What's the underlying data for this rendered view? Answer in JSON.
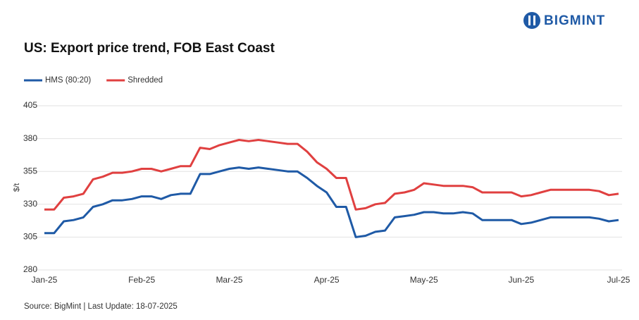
{
  "brand": "BIGMINT",
  "chart_data": {
    "type": "line",
    "title": "US: Export price trend, FOB East Coast",
    "y_label": "$/t",
    "source": "Source: BigMint | Last Update: 18-07-2025",
    "categories": [
      "Jan-25",
      null,
      null,
      null,
      null,
      null,
      null,
      null,
      null,
      null,
      "Feb-25",
      null,
      null,
      null,
      null,
      null,
      null,
      null,
      null,
      "Mar-25",
      null,
      null,
      null,
      null,
      null,
      null,
      null,
      null,
      null,
      "Apr-25",
      null,
      null,
      null,
      null,
      null,
      null,
      null,
      null,
      null,
      "May-25",
      null,
      null,
      null,
      null,
      null,
      null,
      null,
      null,
      null,
      "Jun-25",
      null,
      null,
      null,
      null,
      null,
      null,
      null,
      null,
      null,
      "Jul-25"
    ],
    "series": [
      {
        "name": "HMS (80:20)",
        "color": "#1f5aa6",
        "values": [
          308,
          308,
          317,
          318,
          320,
          328,
          330,
          333,
          333,
          334,
          336,
          336,
          334,
          337,
          338,
          338,
          353,
          353,
          355,
          357,
          358,
          357,
          358,
          357,
          356,
          355,
          355,
          350,
          344,
          339,
          328,
          328,
          305,
          306,
          309,
          310,
          320,
          321,
          322,
          324,
          324,
          323,
          323,
          324,
          323,
          318,
          318,
          318,
          318,
          315,
          316,
          318,
          320,
          320,
          320,
          320,
          320,
          319,
          317,
          318
        ]
      },
      {
        "name": "Shredded",
        "color": "#e04040",
        "values": [
          326,
          326,
          335,
          336,
          338,
          349,
          351,
          354,
          354,
          355,
          357,
          357,
          355,
          357,
          359,
          359,
          373,
          372,
          375,
          377,
          379,
          378,
          379,
          378,
          377,
          376,
          376,
          370,
          362,
          357,
          350,
          350,
          326,
          327,
          330,
          331,
          338,
          339,
          341,
          346,
          345,
          344,
          344,
          344,
          343,
          339,
          339,
          339,
          339,
          336,
          337,
          339,
          341,
          341,
          341,
          341,
          341,
          340,
          337,
          338
        ]
      }
    ],
    "ylim": [
      280,
      405
    ],
    "yticks": [
      280,
      305,
      330,
      355,
      380,
      405
    ],
    "grid": true,
    "legend": "top-left"
  }
}
